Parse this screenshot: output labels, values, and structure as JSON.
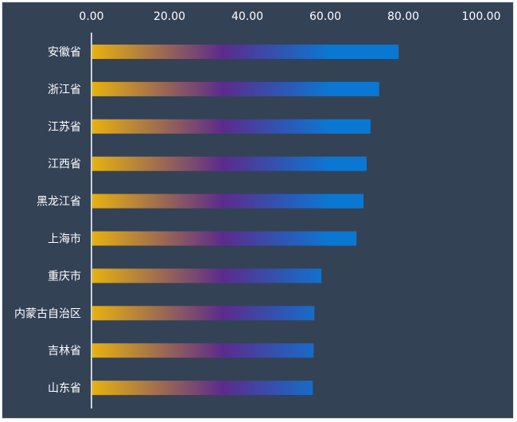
{
  "chart_data": {
    "type": "bar",
    "orientation": "horizontal",
    "x_axis_position": "top",
    "xlim": [
      0,
      100
    ],
    "x_ticks": [
      "0.00",
      "20.00",
      "40.00",
      "60.00",
      "80.00",
      "100.00"
    ],
    "grid": false,
    "legend": "none",
    "categories": [
      "安徽省",
      "浙江省",
      "江苏省",
      "江西省",
      "黑龙江省",
      "上海市",
      "重庆市",
      "内蒙古自治区",
      "吉林省",
      "山东省"
    ],
    "values": [
      78.8,
      73.8,
      71.6,
      70.6,
      69.8,
      68.0,
      59.0,
      57.2,
      57.0,
      56.8
    ],
    "colors": {
      "background": "#344256",
      "gradient_start": "#e8b20f",
      "gradient_mid": "#5b2b8c",
      "gradient_end": "#0a78d2",
      "axis": "#ffffff",
      "text": "#ffffff"
    }
  }
}
